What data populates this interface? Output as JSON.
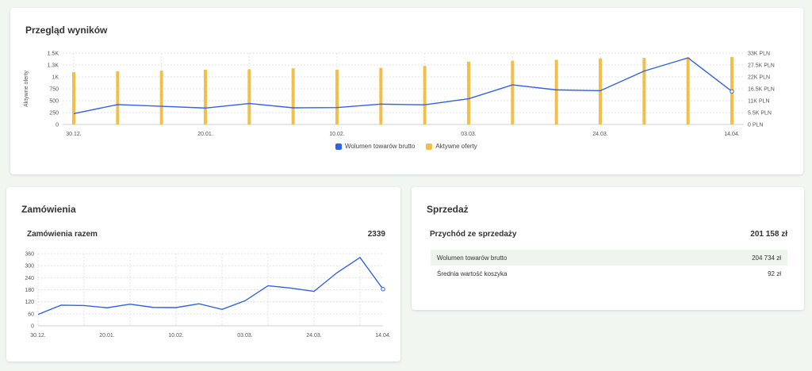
{
  "overview": {
    "title": "Przegląd wyników",
    "legend": [
      {
        "label": "Wolumen towarów brutto",
        "color": "#2f62e8"
      },
      {
        "label": "Aktywne oferty",
        "color": "#f2c04a"
      }
    ]
  },
  "orders": {
    "title": "Zamówienia",
    "total_label": "Zamówienia razem",
    "total_value": "2339"
  },
  "sales": {
    "title": "Sprzedaż",
    "revenue_label": "Przychód ze sprzedaży",
    "revenue_value": "201 158 zł",
    "rows": [
      {
        "label": "Wolumen towarów brutto",
        "value": "204 734 zł"
      },
      {
        "label": "Średnia wartość koszyka",
        "value": "92 zł"
      }
    ]
  },
  "chart_data": [
    {
      "type": "bar",
      "x_tick_labels": [
        "30.12.",
        "20.01.",
        "10.02.",
        "03.03.",
        "24.03.",
        "14.04."
      ],
      "ylabel": "Aktywne oferty",
      "y_ticks": [
        "0",
        "250",
        "500",
        "750",
        "1K",
        "1.3K",
        "1.5K"
      ],
      "ylim": [
        0,
        1500
      ],
      "y2_ticks": [
        "0 PLN",
        "5.5K PLN",
        "11K PLN",
        "16.5K PLN",
        "22K PLN",
        "27.5K PLN",
        "33K PLN"
      ],
      "y2lim": [
        0,
        33000
      ],
      "grid": true,
      "legend_position": "bottom",
      "series": [
        {
          "name": "Aktywne oferty",
          "type": "bar",
          "color": "#f2c04a",
          "values": [
            1100,
            1120,
            1130,
            1150,
            1160,
            1180,
            1150,
            1190,
            1230,
            1320,
            1340,
            1360,
            1390,
            1400,
            1410,
            1420
          ]
        },
        {
          "name": "Wolumen towarów brutto",
          "type": "line",
          "color": "#2f62e8",
          "values": [
            5000,
            9200,
            8400,
            7600,
            9700,
            7700,
            7800,
            9400,
            9100,
            11900,
            18300,
            16000,
            15600,
            24700,
            30800,
            15300
          ]
        }
      ]
    },
    {
      "type": "line",
      "x_tick_labels": [
        "30.12.",
        "20.01.",
        "10.02.",
        "03.03.",
        "24.03.",
        "14.04."
      ],
      "y_ticks": [
        "0",
        "60",
        "120",
        "180",
        "240",
        "300",
        "360"
      ],
      "ylim": [
        0,
        360
      ],
      "grid": true,
      "series": [
        {
          "color": "#2f62e8",
          "values": [
            57,
            103,
            101,
            90,
            108,
            92,
            91,
            110,
            82,
            125,
            200,
            188,
            172,
            265,
            341,
            183
          ]
        }
      ]
    }
  ]
}
